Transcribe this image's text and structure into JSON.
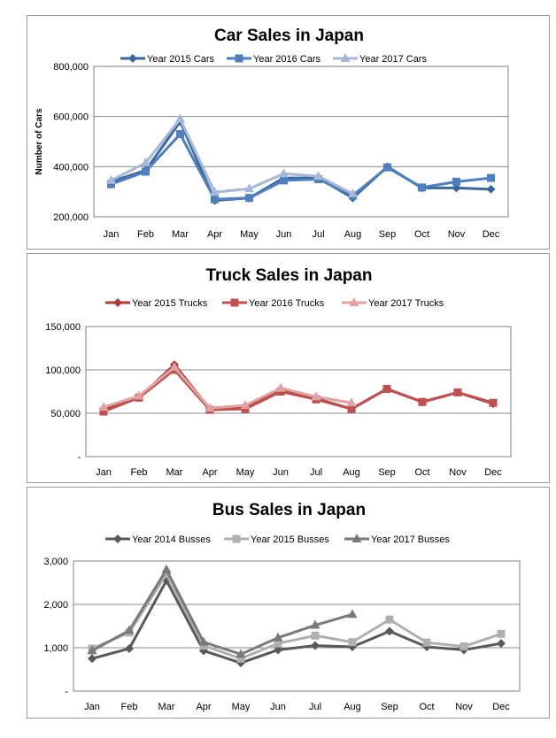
{
  "chart_data": [
    {
      "id": "car",
      "type": "line",
      "title": "Car Sales in Japan",
      "ylabel": "Number of Cars",
      "xlabel": "",
      "categories": [
        "Jan",
        "Feb",
        "Mar",
        "Apr",
        "May",
        "Jun",
        "Jul",
        "Aug",
        "Sep",
        "Oct",
        "Nov",
        "Dec"
      ],
      "yticks": [
        "200,000",
        "400,000",
        "600,000",
        "800,000"
      ],
      "ylim": [
        200000,
        800000
      ],
      "grid": true,
      "legend_position": "top",
      "series": [
        {
          "name": "Year 2015 Cars",
          "color": "#3a689e",
          "marker": "diamond",
          "values": [
            340000,
            385000,
            580000,
            265000,
            275000,
            355000,
            355000,
            275000,
            400000,
            315000,
            315000,
            310000
          ]
        },
        {
          "name": "Year 2016 Cars",
          "color": "#4e7fbe",
          "marker": "square",
          "values": [
            330000,
            380000,
            530000,
            270000,
            275000,
            345000,
            350000,
            285000,
            397000,
            317000,
            340000,
            355000
          ]
        },
        {
          "name": "Year 2017 Cars",
          "color": "#a6b8d8",
          "marker": "triangle",
          "values": [
            345000,
            415000,
            590000,
            298000,
            312000,
            372000,
            362000,
            292000,
            null,
            null,
            null,
            null
          ]
        }
      ]
    },
    {
      "id": "truck",
      "type": "line",
      "title": "Truck Sales in Japan",
      "ylabel": "",
      "xlabel": "",
      "categories": [
        "Jan",
        "Feb",
        "Mar",
        "Apr",
        "May",
        "Jun",
        "Jul",
        "Aug",
        "Sep",
        "Oct",
        "Nov",
        "Dec"
      ],
      "yticks": [
        "-",
        "50,000",
        "100,000",
        "150,000"
      ],
      "ylim": [
        0,
        150000
      ],
      "grid": true,
      "legend_position": "top",
      "series": [
        {
          "name": "Year 2015 Trucks",
          "color": "#b03a3a",
          "marker": "diamond",
          "values": [
            55000,
            68000,
            106000,
            55000,
            56000,
            76000,
            67000,
            55000,
            78000,
            63000,
            74000,
            61000
          ]
        },
        {
          "name": "Year 2016 Trucks",
          "color": "#c0504d",
          "marker": "square",
          "values": [
            52000,
            68000,
            100000,
            54000,
            55000,
            75000,
            66000,
            55000,
            78000,
            63000,
            74000,
            62000
          ]
        },
        {
          "name": "Year 2017 Trucks",
          "color": "#e0a3a1",
          "marker": "triangle",
          "values": [
            57000,
            70000,
            103000,
            56000,
            59000,
            79000,
            69000,
            62000,
            null,
            null,
            null,
            null
          ]
        }
      ]
    },
    {
      "id": "bus",
      "type": "line",
      "title": "Bus Sales in Japan",
      "ylabel": "",
      "xlabel": "",
      "categories": [
        "Jan",
        "Feb",
        "Mar",
        "Apr",
        "May",
        "Jun",
        "Jul",
        "Aug",
        "Sep",
        "Oct",
        "Nov",
        "Dec"
      ],
      "yticks": [
        "-",
        "1,000",
        "2,000",
        "3,000"
      ],
      "ylim": [
        0,
        3000
      ],
      "grid": true,
      "legend_position": "top",
      "series": [
        {
          "name": "Year 2014 Busses",
          "color": "#595959",
          "marker": "diamond",
          "values": [
            750,
            980,
            2550,
            930,
            650,
            950,
            1050,
            1020,
            1380,
            1020,
            950,
            1100
          ]
        },
        {
          "name": "Year 2015 Busses",
          "color": "#b0b0b0",
          "marker": "square",
          "values": [
            980,
            1350,
            2700,
            1050,
            750,
            1100,
            1280,
            1130,
            1650,
            1120,
            1030,
            1320
          ]
        },
        {
          "name": "Year 2017 Busses",
          "color": "#7a7a7a",
          "marker": "triangle",
          "values": [
            930,
            1400,
            2800,
            1130,
            850,
            1230,
            1520,
            1770,
            null,
            null,
            null,
            null
          ]
        }
      ]
    }
  ]
}
